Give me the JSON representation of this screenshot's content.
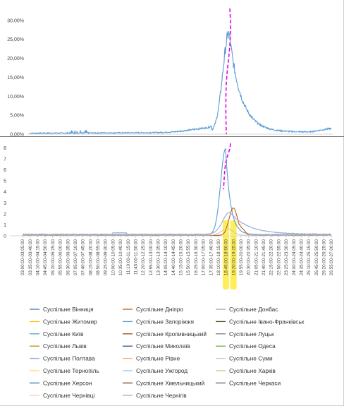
{
  "chart_data": [
    {
      "type": "line",
      "yticks": [
        "0,00%",
        "5,00%",
        "10,00%",
        "15,00%",
        "20,00%",
        "25,00%",
        "30,00%"
      ],
      "ylim": [
        0,
        32
      ],
      "series_color": "#5b9bd5",
      "highlight_color": "#e600e6",
      "peak_value": 26,
      "peak_x_label": "19:20:00-19:25:00"
    },
    {
      "type": "line",
      "yticks": [
        "0",
        "1",
        "2",
        "3",
        "4",
        "5",
        "6",
        "7",
        "8"
      ],
      "ylim": [
        0,
        8.6
      ],
      "x_labels": [
        "03:00:00-03:05:00",
        "03:35:00-03:40:00",
        "04:10:00-04:15:00",
        "04:45:00-04:50:00",
        "05:20:00-05:25:00",
        "05:55:00-06:00:00",
        "06:30:00-06:35:00",
        "07:05:00-07:10:00",
        "07:40:00-07:45:00",
        "08:15:00-08:20:00",
        "08:50:00-08:55:00",
        "09:25:00-09:30:00",
        "10:00:00-10:05:00",
        "10:35:00-10:40:00",
        "11:10:00-11:15:00",
        "11:45:00-11:50:00",
        "12:20:00-12:25:00",
        "12:55:00-13:00:00",
        "13:30:00-13:35:00",
        "14:05:00-14:10:00",
        "14:40:00-14:45:00",
        "15:15:00-15:20:00",
        "15:50:00-15:55:00",
        "16:25:00-16:30:00",
        "17:00:00-17:05:00",
        "17:35:00-17:40:00",
        "18:10:00-18:15:00",
        "18:45:00-18:50:00",
        "19:20:00-19:25:00",
        "19:55:00-20:00:00",
        "20:30:00-20:35:00",
        "21:05:00-21:10:00",
        "21:40:00-21:45:00",
        "22:15:00-22:20:00",
        "22:50:00-22:55:00",
        "23:25:00-23:30:00",
        "24:00:00-24:05:00",
        "24:35:00-24:40:00",
        "25:10:00-25:15:00",
        "25:45:00-25:50:00",
        "26:20:00-26:25:00",
        "26:55:00-27:00:00"
      ],
      "highlighted_labels": [
        "18:45:00-18:50:00",
        "19:20:00-19:25:00"
      ],
      "highlight_color": "#ffeb3b",
      "series": [
        {
          "name": "Суспільне Вінниця",
          "color": "#4472c4"
        },
        {
          "name": "Суспільне Дніпро",
          "color": "#c55a11"
        },
        {
          "name": "Суспільне Донбас",
          "color": "#a5a5a5"
        },
        {
          "name": "Суспільне Житомир",
          "color": "#ffc000"
        },
        {
          "name": "Суспільне Запоріжжя",
          "color": "#5b9bd5"
        },
        {
          "name": "Суспільне Івано-Франківськ",
          "color": "#375623"
        },
        {
          "name": "Суспільне Київ",
          "color": "#5b9bd5"
        },
        {
          "name": "Суспільне Кропивницький",
          "color": "#9e480e"
        },
        {
          "name": "Суспільне Луцьк",
          "color": "#7f7f7f"
        },
        {
          "name": "Суспільне Львів",
          "color": "#bf9000"
        },
        {
          "name": "Суспільне Миколаїв",
          "color": "#2f5597"
        },
        {
          "name": "Суспільне Одеса",
          "color": "#70ad47"
        },
        {
          "name": "Суспільне Полтава",
          "color": "#8faadc"
        },
        {
          "name": "Суспільне Рівне",
          "color": "#f4b183"
        },
        {
          "name": "Суспільне Суми",
          "color": "#c9c9c9"
        },
        {
          "name": "Суспільне Тернопіль",
          "color": "#ffd966"
        },
        {
          "name": "Суспільне Ужгород",
          "color": "#9dc3e6"
        },
        {
          "name": "Суспільне Харків",
          "color": "#a9d18e"
        },
        {
          "name": "Суспільне Херсон",
          "color": "#2e75b6"
        },
        {
          "name": "Суспільне Хмельницький",
          "color": "#843c0c"
        },
        {
          "name": "Суспільне Черкаси",
          "color": "#636363"
        },
        {
          "name": "Суспільне Чернівці",
          "color": "#f8cbad"
        },
        {
          "name": "Суспільне Чернігів",
          "color": "#8ea9db"
        }
      ],
      "peaks": {
        "Суспільне Київ": 7.8,
        "Суспільне Дніпро": 2.5,
        "Суспільне Полтава": 2.0
      }
    }
  ]
}
